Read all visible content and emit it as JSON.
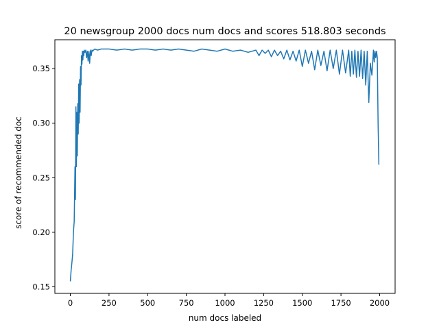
{
  "colors": {
    "line": "#1f77b4",
    "axes": "#000000",
    "background": "#ffffff"
  },
  "chart_data": {
    "type": "line",
    "title": "20 newsgroup 2000 docs num docs and scores 518.803 seconds",
    "xlabel": "num docs labeled",
    "ylabel": "score of recommended doc",
    "xlim": [
      -100,
      2100
    ],
    "ylim": [
      0.144,
      0.3765
    ],
    "grid": false,
    "legend": "none",
    "xticks": [
      0,
      250,
      500,
      750,
      1000,
      1250,
      1500,
      1750,
      2000
    ],
    "xtick_labels": [
      "0",
      "250",
      "500",
      "750",
      "1000",
      "1250",
      "1500",
      "1750",
      "2000"
    ],
    "yticks": [
      0.15,
      0.2,
      0.25,
      0.3,
      0.35
    ],
    "ytick_labels": [
      "0.15",
      "0.20",
      "0.25",
      "0.30",
      "0.35"
    ],
    "series": [
      {
        "x": [
          0,
          5,
          10,
          15,
          20,
          25,
          30,
          33,
          36,
          39,
          42,
          45,
          48,
          51,
          54,
          57,
          60,
          63,
          66,
          69,
          72,
          75,
          78,
          81,
          84,
          87,
          90,
          95,
          100,
          105,
          110,
          115,
          120,
          125,
          130,
          135,
          140,
          145,
          150,
          160,
          175,
          200,
          250,
          300,
          350,
          400,
          450,
          500,
          550,
          600,
          650,
          700,
          750,
          800,
          850,
          900,
          950,
          1000,
          1050,
          1100,
          1150,
          1200,
          1220,
          1240,
          1260,
          1280,
          1300,
          1320,
          1340,
          1360,
          1380,
          1400,
          1420,
          1440,
          1460,
          1480,
          1500,
          1520,
          1540,
          1560,
          1580,
          1600,
          1620,
          1640,
          1660,
          1680,
          1700,
          1720,
          1740,
          1760,
          1780,
          1800,
          1810,
          1820,
          1830,
          1840,
          1850,
          1860,
          1870,
          1880,
          1890,
          1900,
          1910,
          1920,
          1930,
          1940,
          1950,
          1960,
          1965,
          1970,
          1975,
          1980,
          1985,
          1990,
          1995
        ],
        "y": [
          0.155,
          0.165,
          0.172,
          0.18,
          0.2,
          0.21,
          0.26,
          0.23,
          0.315,
          0.26,
          0.31,
          0.27,
          0.318,
          0.29,
          0.336,
          0.3,
          0.34,
          0.31,
          0.352,
          0.335,
          0.362,
          0.354,
          0.366,
          0.358,
          0.366,
          0.362,
          0.367,
          0.365,
          0.367,
          0.36,
          0.366,
          0.357,
          0.366,
          0.355,
          0.367,
          0.362,
          0.367,
          0.366,
          0.367,
          0.368,
          0.367,
          0.368,
          0.368,
          0.367,
          0.368,
          0.367,
          0.368,
          0.368,
          0.367,
          0.368,
          0.367,
          0.368,
          0.367,
          0.366,
          0.368,
          0.367,
          0.366,
          0.368,
          0.366,
          0.367,
          0.365,
          0.367,
          0.362,
          0.367,
          0.364,
          0.367,
          0.361,
          0.367,
          0.362,
          0.366,
          0.359,
          0.367,
          0.358,
          0.366,
          0.357,
          0.367,
          0.352,
          0.367,
          0.355,
          0.366,
          0.349,
          0.367,
          0.353,
          0.366,
          0.348,
          0.367,
          0.35,
          0.367,
          0.345,
          0.367,
          0.346,
          0.367,
          0.343,
          0.366,
          0.345,
          0.367,
          0.342,
          0.366,
          0.343,
          0.367,
          0.341,
          0.366,
          0.335,
          0.366,
          0.319,
          0.355,
          0.344,
          0.367,
          0.356,
          0.366,
          0.36,
          0.366,
          0.36,
          0.3,
          0.262
        ]
      }
    ]
  }
}
